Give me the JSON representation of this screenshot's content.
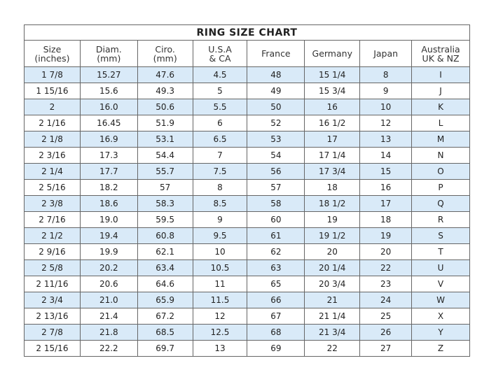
{
  "title": "RING SIZE CHART",
  "columns": [
    [
      "Size",
      "(inches)"
    ],
    [
      "Diam.",
      "(mm)"
    ],
    [
      "Ciro.",
      "(mm)"
    ],
    [
      "U.S.A",
      "& CA"
    ],
    [
      "France",
      ""
    ],
    [
      "Germany",
      ""
    ],
    [
      "Japan",
      ""
    ],
    [
      "Australia",
      "UK & NZ"
    ]
  ],
  "colors": {
    "row_shade": "#d9eaf8",
    "border": "#666666"
  },
  "rows": [
    [
      "1 7/8",
      "15.27",
      "47.6",
      "4.5",
      "48",
      "15 1/4",
      "8",
      "I"
    ],
    [
      "1 15/16",
      "15.6",
      "49.3",
      "5",
      "49",
      "15 3/4",
      "9",
      "J"
    ],
    [
      "2",
      "16.0",
      "50.6",
      "5.5",
      "50",
      "16",
      "10",
      "K"
    ],
    [
      "2 1/16",
      "16.45",
      "51.9",
      "6",
      "52",
      "16 1/2",
      "12",
      "L"
    ],
    [
      "2 1/8",
      "16.9",
      "53.1",
      "6.5",
      "53",
      "17",
      "13",
      "M"
    ],
    [
      "2 3/16",
      "17.3",
      "54.4",
      "7",
      "54",
      "17 1/4",
      "14",
      "N"
    ],
    [
      "2 1/4",
      "17.7",
      "55.7",
      "7.5",
      "56",
      "17 3/4",
      "15",
      "O"
    ],
    [
      "2 5/16",
      "18.2",
      "57",
      "8",
      "57",
      "18",
      "16",
      "P"
    ],
    [
      "2 3/8",
      "18.6",
      "58.3",
      "8.5",
      "58",
      "18 1/2",
      "17",
      "Q"
    ],
    [
      "2 7/16",
      "19.0",
      "59.5",
      "9",
      "60",
      "19",
      "18",
      "R"
    ],
    [
      "2 1/2",
      "19.4",
      "60.8",
      "9.5",
      "61",
      "19 1/2",
      "19",
      "S"
    ],
    [
      "2 9/16",
      "19.9",
      "62.1",
      "10",
      "62",
      "20",
      "20",
      "T"
    ],
    [
      "2 5/8",
      "20.2",
      "63.4",
      "10.5",
      "63",
      "20 1/4",
      "22",
      "U"
    ],
    [
      "2 11/16",
      "20.6",
      "64.6",
      "11",
      "65",
      "20 3/4",
      "23",
      "V"
    ],
    [
      "2 3/4",
      "21.0",
      "65.9",
      "11.5",
      "66",
      "21",
      "24",
      "W"
    ],
    [
      "2 13/16",
      "21.4",
      "67.2",
      "12",
      "67",
      "21 1/4",
      "25",
      "X"
    ],
    [
      "2 7/8",
      "21.8",
      "68.5",
      "12.5",
      "68",
      "21 3/4",
      "26",
      "Y"
    ],
    [
      "2 15/16",
      "22.2",
      "69.7",
      "13",
      "69",
      "22",
      "27",
      "Z"
    ]
  ]
}
